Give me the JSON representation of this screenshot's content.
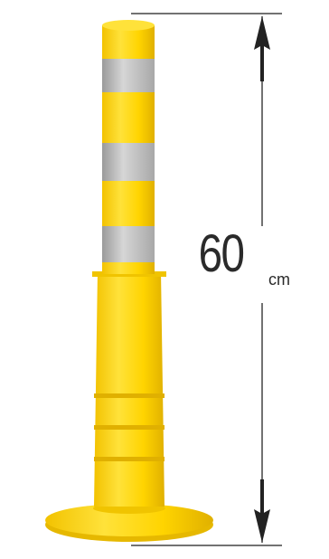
{
  "dimension": {
    "value": "60",
    "unit": "cm"
  },
  "colors": {
    "post_yellow": "#ffd400",
    "post_shadow": "#e6b800",
    "reflective_band": "#b9b9b9",
    "dimension_line": "#444444",
    "label": "#2a2a2a"
  },
  "icons": {
    "top_arrow": "arrow-up-icon",
    "bottom_arrow": "arrow-down-icon"
  }
}
